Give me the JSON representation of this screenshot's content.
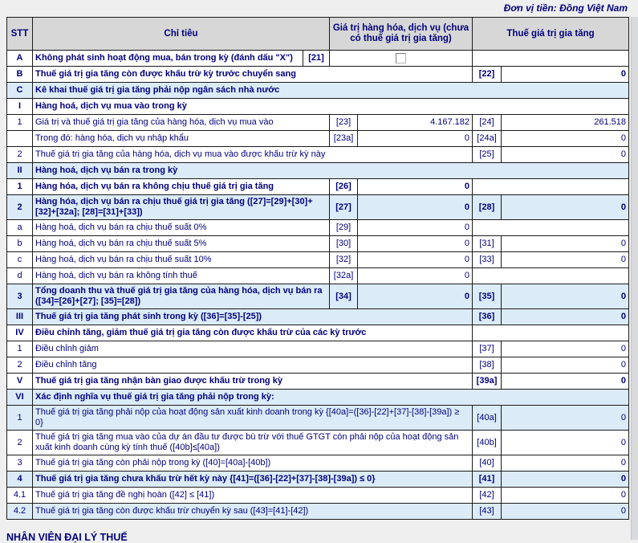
{
  "page": {
    "currency_note": "Đơn vị tiền: Đồng Việt Nam",
    "footer_cutoff_text": "NHÂN VIÊN ĐẠI LÝ THUẾ",
    "colors": {
      "text_navy": "#00007d",
      "row_highlight_blue": "#dcebf8",
      "header_gray": "#d7d7d7",
      "page_background": "#efeff0"
    }
  },
  "table": {
    "headers": {
      "stt": "STT",
      "chi_tieu": "Chỉ tiêu",
      "gia_tri": "Giá trị hàng hóa, dịch vụ (chưa có thuế giá trị gia tăng)",
      "thue": "Thuế giá trị gia tăng"
    },
    "rows": [
      {
        "stt": "A",
        "label": "Không phát sinh hoạt động mua, bán trong kỳ (đánh dấu \"X\")",
        "code1": "[21]",
        "type": "checkbox",
        "bold": true,
        "blue": false,
        "checkbox_checked": false
      },
      {
        "stt": "B",
        "label": "Thuế giá trị gia tăng còn được khấu trừ kỳ trước chuyển sang",
        "code2": "[22]",
        "value2": "0",
        "type": "full",
        "bold": true,
        "blue": false
      },
      {
        "stt": "C",
        "label": "Kê khai thuế giá trị gia tăng phải nộp ngân sách nhà nước",
        "type": "section",
        "bold": true,
        "blue": true
      },
      {
        "stt": "I",
        "label": "Hàng hoá, dịch vụ mua vào trong kỳ",
        "type": "section",
        "bold": true,
        "blue": false
      },
      {
        "stt": "1",
        "label": "Giá trị và thuế giá trị gia tăng của hàng hóa, dịch vụ mua vào",
        "code1": "[23]",
        "value1": "4.167.182",
        "code2": "[24]",
        "value2": "261.518",
        "type": "both",
        "bold": false,
        "blue": false
      },
      {
        "stt": "",
        "label": "Trong đó: hàng hóa, dịch vụ nhập khẩu",
        "code1": "[23a]",
        "value1": "0",
        "code2": "[24a]",
        "value2": "0",
        "type": "both",
        "bold": false,
        "blue": false
      },
      {
        "stt": "2",
        "label": "Thuế giá trị gia tăng của hàng hóa, dịch vụ mua vào được khấu trừ kỳ này",
        "code2": "[25]",
        "value2": "0",
        "type": "full",
        "bold": false,
        "blue": false
      },
      {
        "stt": "II",
        "label": "Hàng hoá, dịch vụ bán ra trong kỳ",
        "type": "section",
        "bold": true,
        "blue": true
      },
      {
        "stt": "1",
        "label": "Hàng hóa, dịch vụ bán ra không chịu thuế giá trị gia tăng",
        "code1": "[26]",
        "value1": "0",
        "type": "left",
        "bold": true,
        "blue": false
      },
      {
        "stt": "2",
        "label": "Hàng hóa, dịch vụ bán ra chịu thuế giá trị gia tăng ([27]=[29]+[30]+[32]+[32a]; [28]=[31]+[33])",
        "code1": "[27]",
        "value1": "0",
        "code2": "[28]",
        "value2": "0",
        "type": "both",
        "bold": true,
        "blue": true
      },
      {
        "stt": "a",
        "label": "Hàng hoá, dịch vụ bán ra chịu thuế suất 0%",
        "code1": "[29]",
        "value1": "0",
        "type": "left",
        "bold": false,
        "blue": false
      },
      {
        "stt": "b",
        "label": "Hàng hoá, dịch vụ bán ra chịu thuế suất 5%",
        "code1": "[30]",
        "value1": "0",
        "code2": "[31]",
        "value2": "0",
        "type": "both",
        "bold": false,
        "blue": false
      },
      {
        "stt": "c",
        "label": "Hàng hoá, dịch vụ bán ra chịu thuế suất 10%",
        "code1": "[32]",
        "value1": "0",
        "code2": "[33]",
        "value2": "0",
        "type": "both",
        "bold": false,
        "blue": false
      },
      {
        "stt": "d",
        "label": "Hàng hoá, dịch vụ bán ra không tính thuế",
        "code1": "[32a]",
        "value1": "0",
        "type": "left",
        "bold": false,
        "blue": false
      },
      {
        "stt": "3",
        "label": "Tổng doanh thu và thuế giá trị gia tăng của hàng hóa, dịch vụ bán ra ([34]=[26]+[27]; [35]=[28])",
        "code1": "[34]",
        "value1": "0",
        "code2": "[35]",
        "value2": "0",
        "type": "both",
        "bold": true,
        "blue": true
      },
      {
        "stt": "III",
        "label": "Thuế giá trị gia tăng phát sinh trong kỳ ([36]=[35]-[25])",
        "code2": "[36]",
        "value2": "0",
        "type": "full",
        "bold": true,
        "blue": true
      },
      {
        "stt": "IV",
        "label": "Điều chỉnh tăng, giảm thuế giá trị gia tăng còn được khấu trừ của các kỳ trước",
        "type": "section2",
        "bold": true,
        "blue": false
      },
      {
        "stt": "1",
        "label": "Điều chỉnh giảm",
        "code2": "[37]",
        "value2": "0",
        "type": "full",
        "bold": false,
        "blue": false
      },
      {
        "stt": "2",
        "label": "Điều chỉnh tăng",
        "code2": "[38]",
        "value2": "0",
        "type": "full",
        "bold": false,
        "blue": false
      },
      {
        "stt": "V",
        "label": "Thuế giá trị gia tăng nhận bàn giao được khấu trừ trong kỳ",
        "code2": "[39a]",
        "value2": "0",
        "type": "full",
        "bold": true,
        "blue": false
      },
      {
        "stt": "VI",
        "label": "Xác định nghĩa vụ thuế giá trị gia tăng phải nộp trong kỳ:",
        "type": "section",
        "bold": true,
        "blue": true
      },
      {
        "stt": "1",
        "label": "Thuế giá trị gia tăng phải nộp của hoạt động sản xuất kinh doanh trong kỳ {[40a]=([36]-[22]+[37]-[38]-[39a]) ≥ 0}",
        "code2": "[40a]",
        "value2": "0",
        "type": "full",
        "bold": false,
        "blue": true
      },
      {
        "stt": "2",
        "label": "Thuế giá trị gia tăng mua vào của dự án đầu tư được bù trừ với thuế GTGT còn phải nộp của hoạt động sản xuất kinh doanh cùng kỳ tính thuế ([40b]≤[40a])",
        "code2": "[40b]",
        "value2": "0",
        "type": "full",
        "bold": false,
        "blue": false
      },
      {
        "stt": "3",
        "label": "Thuế giá trị gia tăng còn phải nộp trong kỳ ([40]=[40a]-[40b])",
        "code2": "[40]",
        "value2": "0",
        "type": "full",
        "bold": false,
        "blue": false
      },
      {
        "stt": "4",
        "label": "Thuế giá trị gia tăng chưa khấu trừ hết kỳ này {[41]=([36]-[22]+[37]-[38]-[39a]) ≤ 0}",
        "code2": "[41]",
        "value2": "0",
        "type": "full",
        "bold": true,
        "blue": true
      },
      {
        "stt": "4.1",
        "label": "Thuế giá trị gia tăng đề nghị hoàn ([42] ≤ [41])",
        "code2": "[42]",
        "value2": "0",
        "type": "full",
        "bold": false,
        "blue": false
      },
      {
        "stt": "4.2",
        "label": "Thuế giá trị gia tăng còn được khấu trừ chuyển kỳ sau ([43]=[41]-[42])",
        "code2": "[43]",
        "value2": "0",
        "type": "full",
        "bold": false,
        "blue": true
      }
    ]
  }
}
